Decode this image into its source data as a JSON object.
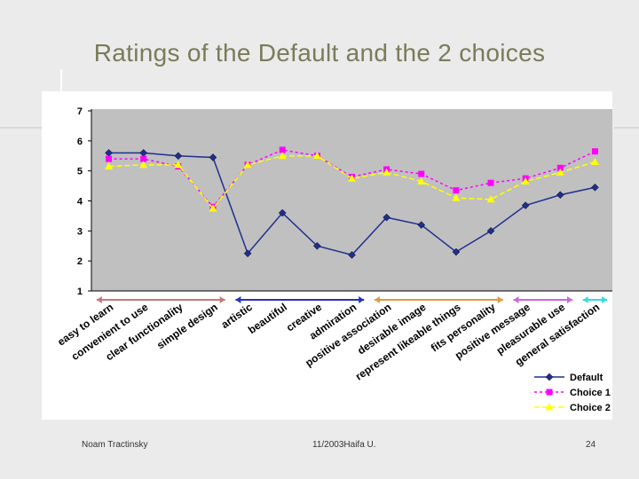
{
  "slide": {
    "title": "Ratings of the Default and the 2 choices",
    "footer_left": "Noam Tractinsky",
    "footer_center": "11/2003Haifa U.",
    "page_number": "24"
  },
  "chart_data": {
    "type": "line",
    "title": "",
    "xlabel": "",
    "ylabel": "",
    "ylim": [
      1,
      7
    ],
    "yticks": [
      1,
      2,
      3,
      4,
      5,
      6,
      7
    ],
    "grid": false,
    "legend_position": "bottom-right",
    "categories": [
      "easy to learn",
      "convenient to use",
      "clear functionality",
      "simple design",
      "artistic",
      "beautiful",
      "creative",
      "admiration",
      "positive association",
      "desirable image",
      "represent likeable things",
      "fits personality",
      "positive message",
      "pleasurable use",
      "general satisfaction"
    ],
    "series": [
      {
        "name": "Default",
        "color": "#1f2f8f",
        "dash": "none",
        "marker": "diamond",
        "values": [
          5.6,
          5.6,
          5.5,
          5.45,
          2.25,
          3.6,
          2.5,
          2.2,
          3.45,
          3.2,
          2.3,
          3.0,
          3.85,
          4.2,
          4.45
        ]
      },
      {
        "name": "Choice 1",
        "color": "#ff00ff",
        "dash": "3,3",
        "marker": "square",
        "values": [
          5.4,
          5.4,
          5.15,
          3.8,
          5.2,
          5.7,
          5.5,
          4.8,
          5.05,
          4.9,
          4.35,
          4.6,
          4.75,
          5.1,
          5.65
        ]
      },
      {
        "name": "Choice 2",
        "color": "#ffff00",
        "dash": "6,3",
        "marker": "triangle",
        "values": [
          5.15,
          5.2,
          5.2,
          3.75,
          5.2,
          5.5,
          5.5,
          4.75,
          4.95,
          4.65,
          4.1,
          4.05,
          4.65,
          4.95,
          5.3
        ]
      }
    ],
    "annotations": {
      "group_arrows": [
        {
          "color": "#c87878",
          "from": 0,
          "to": 3
        },
        {
          "color": "#2233bb",
          "from": 4,
          "to": 7
        },
        {
          "color": "#e09a40",
          "from": 8,
          "to": 11
        },
        {
          "color": "#cc66dd",
          "from": 12,
          "to": 13
        },
        {
          "color": "#33dddd",
          "from": 14,
          "to": 14
        }
      ]
    }
  }
}
